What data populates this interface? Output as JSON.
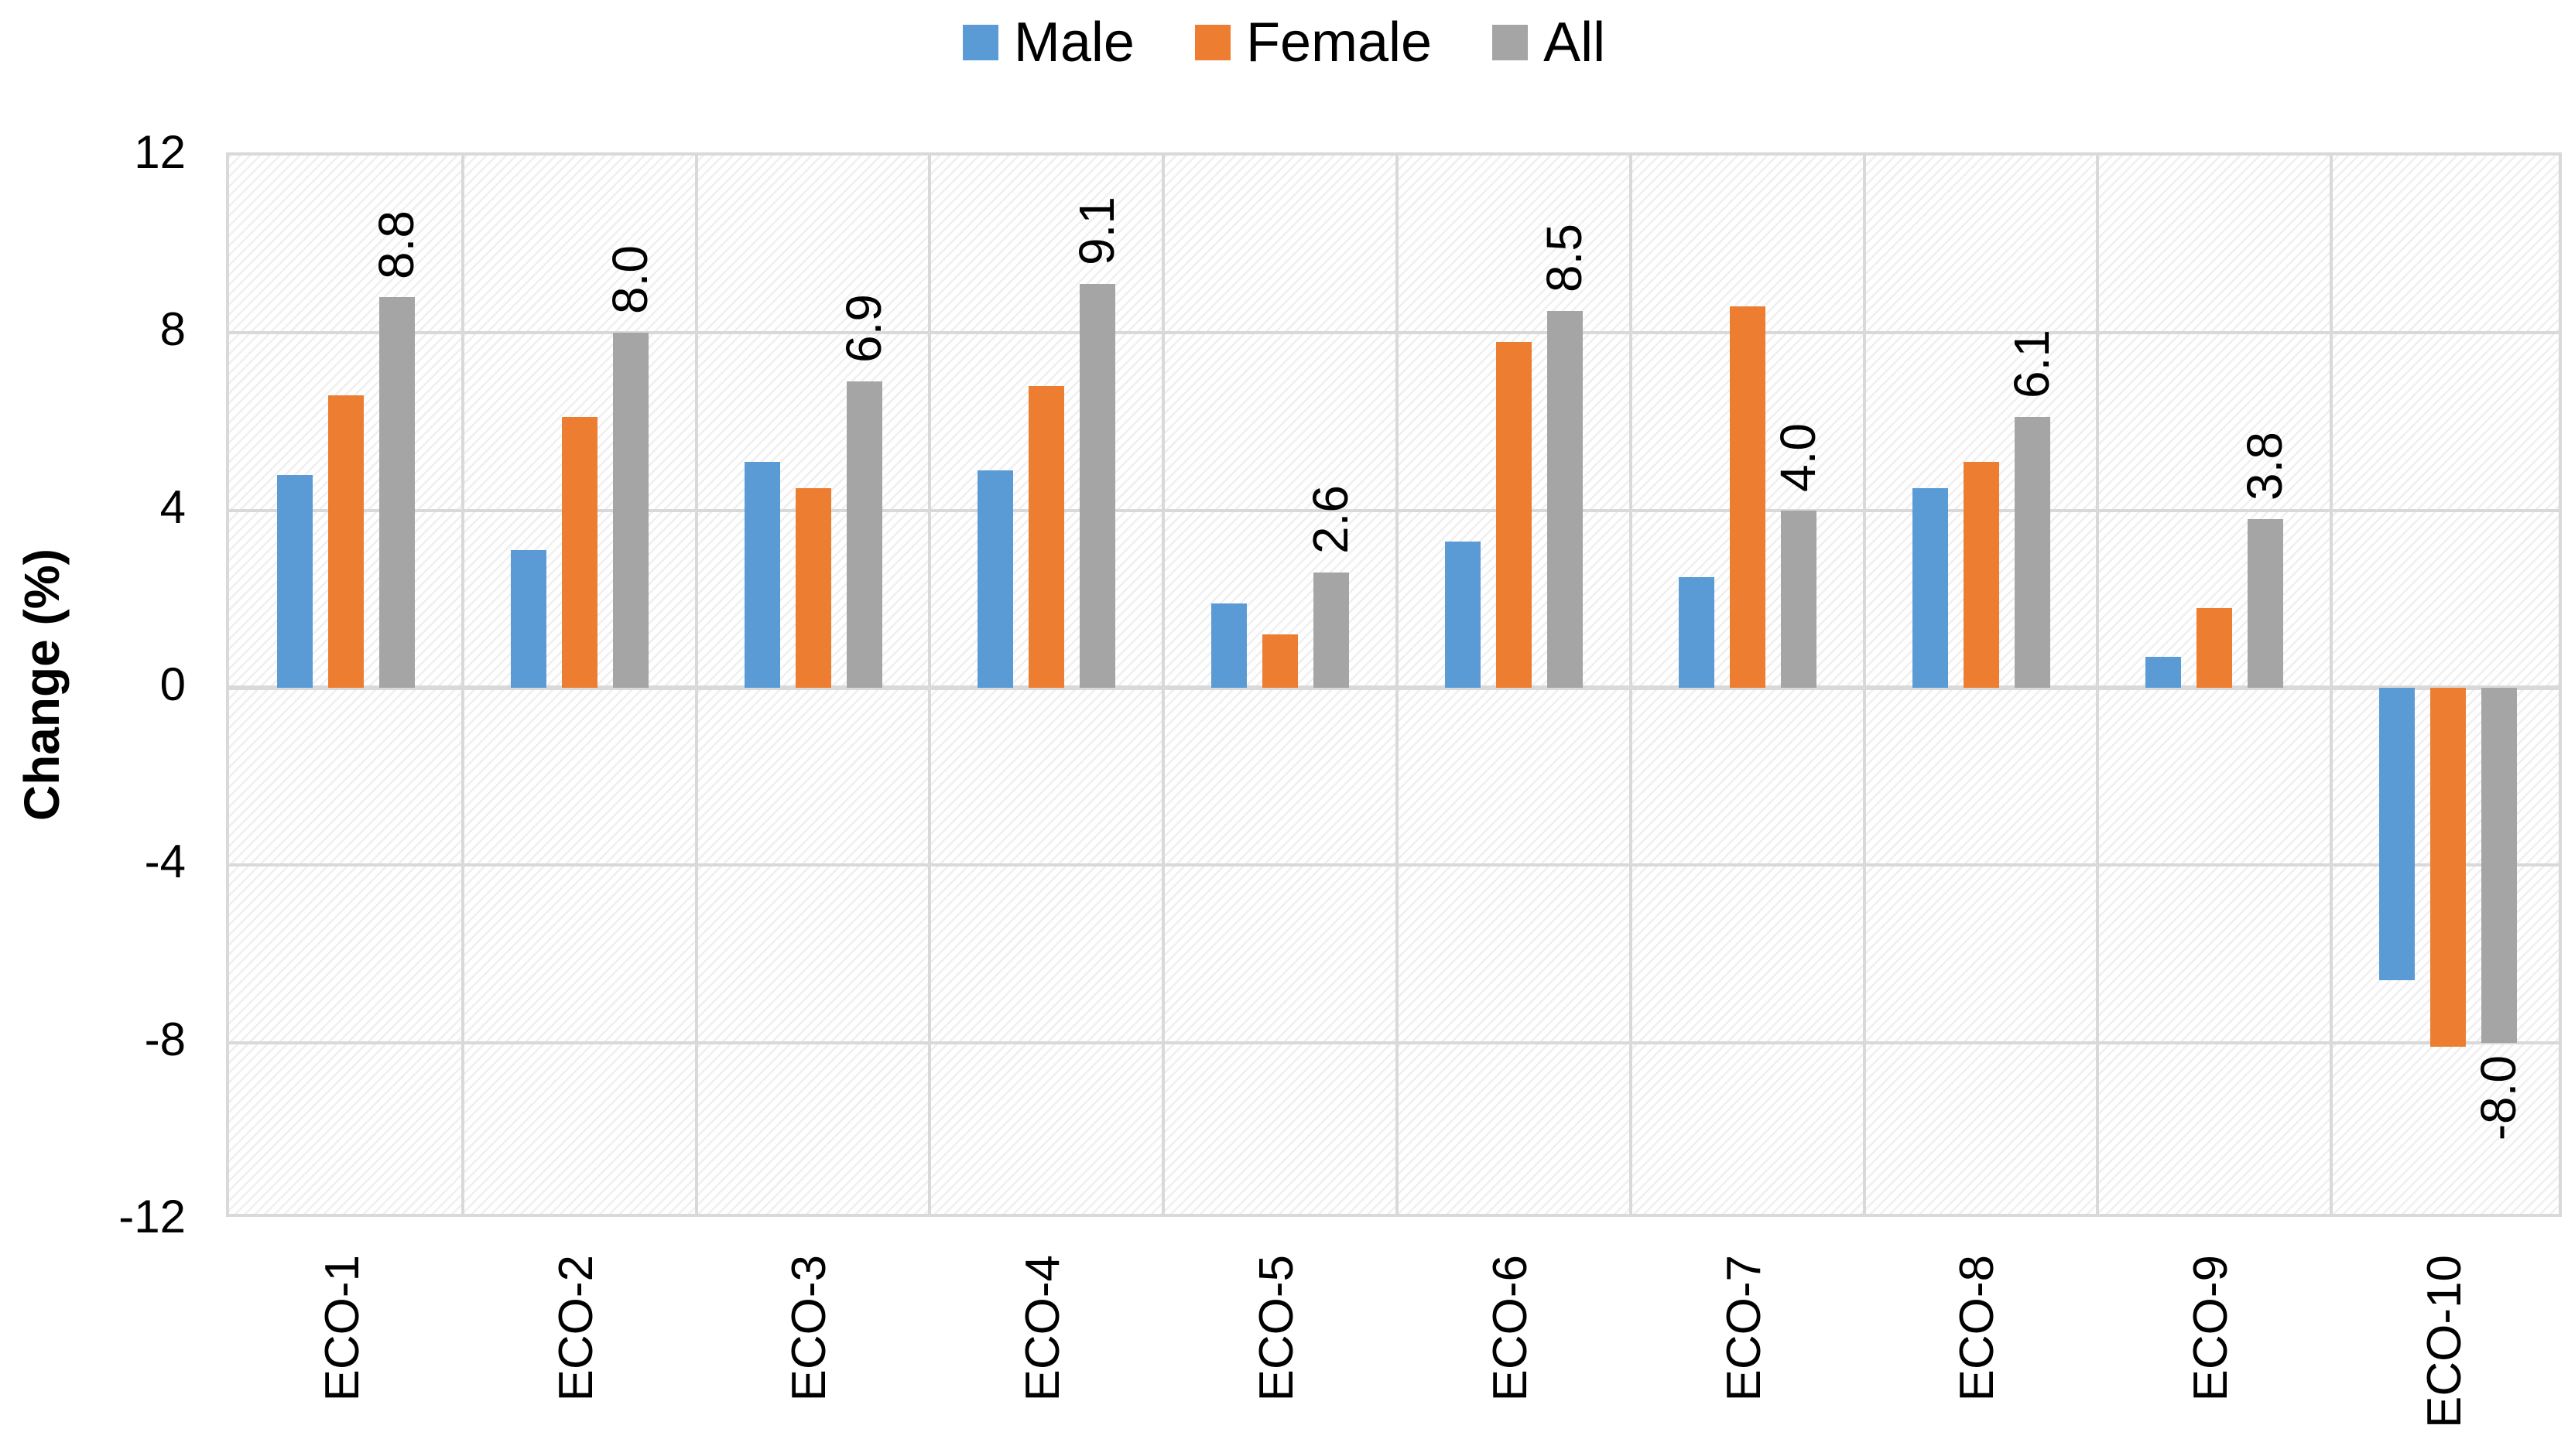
{
  "legend": {
    "items": [
      {
        "label": "Male",
        "color": "#5B9BD5"
      },
      {
        "label": "Female",
        "color": "#ED7D31"
      },
      {
        "label": "All",
        "color": "#A5A5A5"
      }
    ],
    "position": "top-center"
  },
  "y_axis": {
    "title": "Change (%)",
    "tick_labels": [
      "12",
      "8",
      "4",
      "0",
      "-4",
      "-8",
      "-12"
    ],
    "tick_values": [
      12,
      8,
      4,
      0,
      -4,
      -8,
      -12
    ]
  },
  "colors": {
    "male": "#5B9BD5",
    "female": "#ED7D31",
    "all": "#A5A5A5",
    "gridline": "#d9d9d9",
    "text": "#000000"
  },
  "chart_data": {
    "type": "bar",
    "title": "",
    "xlabel": "",
    "ylabel": "Change (%)",
    "ylim": [
      -12,
      12
    ],
    "grid": true,
    "legend_position": "top",
    "plot_background": "diagonal-hatch",
    "categories": [
      "ECO-1",
      "ECO-2",
      "ECO-3",
      "ECO-4",
      "ECO-5",
      "ECO-6",
      "ECO-7",
      "ECO-8",
      "ECO-9",
      "ECO-10"
    ],
    "series": [
      {
        "name": "Male",
        "color": "#5B9BD5",
        "values": [
          4.8,
          3.1,
          5.1,
          4.9,
          1.9,
          3.3,
          2.5,
          4.5,
          0.7,
          -6.6
        ]
      },
      {
        "name": "Female",
        "color": "#ED7D31",
        "values": [
          6.6,
          6.1,
          4.5,
          6.8,
          1.2,
          7.8,
          8.6,
          5.1,
          1.8,
          -8.1
        ]
      },
      {
        "name": "All",
        "color": "#A5A5A5",
        "values": [
          8.8,
          8.0,
          6.9,
          9.1,
          2.6,
          8.5,
          4.0,
          6.1,
          3.8,
          -8.0
        ],
        "data_labels": [
          "8.8",
          "8.0",
          "6.9",
          "9.1",
          "2.6",
          "8.5",
          "4.0",
          "6.1",
          "3.8",
          "-8.0"
        ]
      }
    ]
  }
}
